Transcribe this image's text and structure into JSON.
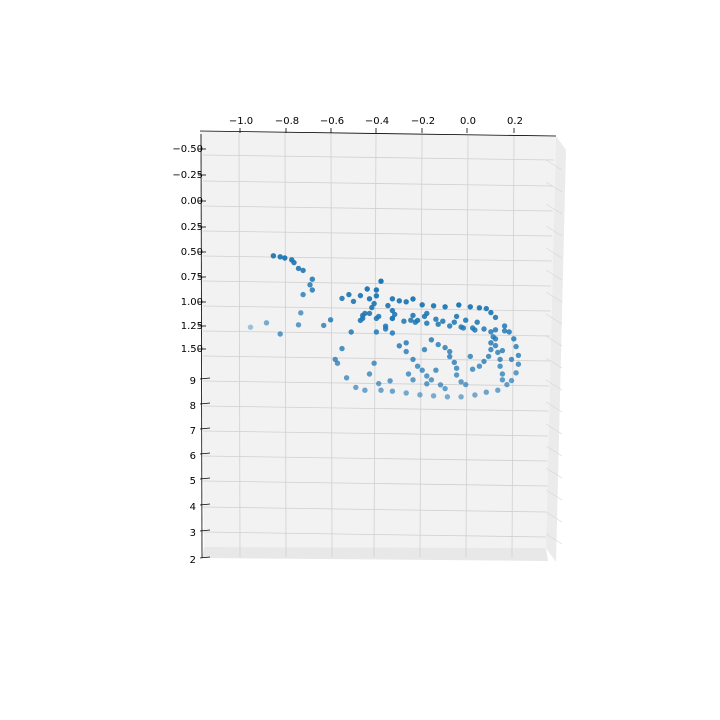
{
  "chart_data": {
    "type": "scatter",
    "title": "",
    "projection": "3d",
    "marker_color": "#1f77b4",
    "grid": true,
    "pane_color": "#f2f2f2",
    "x_axis": {
      "label": "",
      "ticks": [
        "−1.0",
        "−0.8",
        "−0.6",
        "−0.4",
        "−0.2",
        "0.0",
        "0.2"
      ]
    },
    "y_axis": {
      "label": "",
      "ticks": [
        "−0.50",
        "−0.25",
        "0.00",
        "0.25",
        "0.50",
        "0.75",
        "1.00",
        "1.25",
        "1.50"
      ]
    },
    "z_axis": {
      "label": "",
      "ticks": [
        "9",
        "8",
        "7",
        "6",
        "5",
        "4",
        "3",
        "2"
      ]
    },
    "points": [
      [
        -0.85,
        0.54,
        4.6
      ],
      [
        -0.82,
        0.55,
        4.6
      ],
      [
        -0.8,
        0.57,
        4.5
      ],
      [
        -0.77,
        0.58,
        4.6
      ],
      [
        -0.76,
        0.6,
        4.7
      ],
      [
        -0.74,
        0.65,
        4.8
      ],
      [
        -0.72,
        0.67,
        4.8
      ],
      [
        -0.68,
        0.75,
        4.9
      ],
      [
        -0.69,
        0.79,
        5.1
      ],
      [
        -0.68,
        0.85,
        5.0
      ],
      [
        -0.72,
        0.88,
        5.2
      ],
      [
        -0.73,
        1.03,
        5.6
      ],
      [
        -0.95,
        1.07,
        6.9
      ],
      [
        -0.88,
        1.09,
        6.1
      ],
      [
        -0.74,
        1.15,
        5.6
      ],
      [
        -0.82,
        1.25,
        5.5
      ],
      [
        -0.6,
        1.14,
        5.1
      ],
      [
        -0.63,
        1.18,
        5.3
      ],
      [
        -0.55,
        0.95,
        4.8
      ],
      [
        -0.52,
        0.92,
        4.7
      ],
      [
        -0.5,
        0.98,
        4.8
      ],
      [
        -0.47,
        0.93,
        4.7
      ],
      [
        -0.44,
        0.88,
        4.5
      ],
      [
        -0.4,
        0.94,
        4.6
      ],
      [
        -0.33,
        0.97,
        4.6
      ],
      [
        -0.3,
        0.99,
        4.6
      ],
      [
        -0.27,
        1.0,
        4.6
      ],
      [
        -0.24,
        0.98,
        4.5
      ],
      [
        -0.2,
        1.03,
        4.6
      ],
      [
        -0.15,
        1.04,
        4.6
      ],
      [
        -0.1,
        1.05,
        4.6
      ],
      [
        -0.04,
        1.04,
        4.5
      ],
      [
        0.01,
        1.05,
        4.6
      ],
      [
        0.05,
        1.06,
        4.6
      ],
      [
        0.08,
        1.06,
        4.7
      ],
      [
        0.1,
        1.1,
        4.7
      ],
      [
        0.12,
        1.14,
        4.8
      ],
      [
        0.16,
        1.21,
        5.0
      ],
      [
        0.18,
        1.27,
        5.0
      ],
      [
        0.2,
        1.33,
        5.1
      ],
      [
        0.21,
        1.4,
        5.2
      ],
      [
        0.22,
        1.48,
        5.3
      ],
      [
        0.22,
        1.56,
        5.4
      ],
      [
        0.21,
        1.63,
        5.6
      ],
      [
        0.19,
        1.7,
        5.7
      ],
      [
        0.17,
        1.74,
        5.7
      ],
      [
        0.13,
        1.78,
        5.9
      ],
      [
        0.08,
        1.8,
        5.9
      ],
      [
        0.03,
        1.82,
        6.0
      ],
      [
        -0.03,
        1.83,
        6.1
      ],
      [
        -0.09,
        1.83,
        6.1
      ],
      [
        -0.15,
        1.82,
        6.1
      ],
      [
        -0.21,
        1.81,
        6.1
      ],
      [
        -0.27,
        1.8,
        6.0
      ],
      [
        -0.33,
        1.79,
        5.9
      ],
      [
        -0.38,
        1.78,
        5.9
      ],
      [
        -0.45,
        1.78,
        5.9
      ],
      [
        -0.49,
        1.76,
        5.8
      ],
      [
        -0.53,
        1.68,
        5.6
      ],
      [
        -0.57,
        1.55,
        5.4
      ],
      [
        -0.58,
        1.52,
        5.3
      ],
      [
        -0.55,
        1.42,
        5.2
      ],
      [
        -0.51,
        1.27,
        5.0
      ],
      [
        -0.47,
        1.17,
        4.8
      ],
      [
        -0.43,
        1.1,
        4.8
      ],
      [
        -0.39,
        1.13,
        4.8
      ],
      [
        -0.33,
        1.15,
        4.8
      ],
      [
        -0.28,
        1.17,
        4.9
      ],
      [
        -0.23,
        1.18,
        4.9
      ],
      [
        -0.18,
        1.19,
        4.9
      ],
      [
        -0.13,
        1.2,
        4.9
      ],
      [
        -0.08,
        1.21,
        5.0
      ],
      [
        -0.03,
        1.22,
        5.0
      ],
      [
        0.02,
        1.23,
        5.0
      ],
      [
        0.07,
        1.24,
        5.0
      ],
      [
        0.12,
        1.24,
        5.1
      ],
      [
        0.16,
        1.25,
        5.1
      ],
      [
        -0.4,
        1.15,
        4.8
      ],
      [
        -0.36,
        1.22,
        4.9
      ],
      [
        -0.33,
        1.28,
        5.0
      ],
      [
        -0.3,
        1.4,
        5.1
      ],
      [
        -0.27,
        1.45,
        5.2
      ],
      [
        -0.24,
        1.52,
        5.3
      ],
      [
        -0.22,
        1.58,
        5.4
      ],
      [
        -0.2,
        1.62,
        5.4
      ],
      [
        -0.18,
        1.67,
        5.5
      ],
      [
        -0.16,
        1.7,
        5.6
      ],
      [
        -0.18,
        1.74,
        5.6
      ],
      [
        -0.12,
        1.75,
        5.6
      ],
      [
        -0.1,
        1.78,
        5.7
      ],
      [
        -0.08,
        1.45,
        5.2
      ],
      [
        -0.08,
        1.5,
        5.2
      ],
      [
        -0.06,
        1.55,
        5.3
      ],
      [
        -0.05,
        1.6,
        5.4
      ],
      [
        -0.05,
        1.66,
        5.5
      ],
      [
        -0.03,
        1.72,
        5.6
      ],
      [
        -0.01,
        1.74,
        5.7
      ],
      [
        0.02,
        1.61,
        5.4
      ],
      [
        0.05,
        1.58,
        5.4
      ],
      [
        0.07,
        1.54,
        5.3
      ],
      [
        0.09,
        1.49,
        5.3
      ],
      [
        0.1,
        1.43,
        5.2
      ],
      [
        0.1,
        1.37,
        5.1
      ],
      [
        0.11,
        1.31,
        5.1
      ],
      [
        0.1,
        1.26,
        5.1
      ],
      [
        0.12,
        1.33,
        5.1
      ],
      [
        0.12,
        1.39,
        5.2
      ],
      [
        0.13,
        1.45,
        5.3
      ],
      [
        0.14,
        1.52,
        5.3
      ],
      [
        0.14,
        1.58,
        5.4
      ],
      [
        0.15,
        1.65,
        5.5
      ],
      [
        0.15,
        1.7,
        5.6
      ],
      [
        -0.38,
        0.81,
        4.4
      ],
      [
        -0.4,
        0.89,
        4.5
      ],
      [
        -0.43,
        0.97,
        4.6
      ],
      [
        -0.41,
        1.01,
        4.7
      ],
      [
        -0.42,
        1.05,
        4.7
      ],
      [
        -0.45,
        1.1,
        4.8
      ],
      [
        -0.46,
        1.12,
        4.8
      ],
      [
        -0.46,
        1.15,
        4.8
      ],
      [
        -0.35,
        1.03,
        4.7
      ],
      [
        -0.33,
        1.08,
        4.7
      ],
      [
        -0.32,
        1.11,
        4.8
      ],
      [
        -0.33,
        1.15,
        4.8
      ],
      [
        -0.24,
        1.12,
        4.8
      ],
      [
        -0.25,
        1.16,
        4.9
      ],
      [
        -0.18,
        1.1,
        4.8
      ],
      [
        -0.19,
        1.13,
        4.8
      ],
      [
        -0.22,
        1.17,
        4.8
      ],
      [
        -0.14,
        1.15,
        4.9
      ],
      [
        -0.11,
        1.17,
        4.9
      ],
      [
        -0.06,
        1.18,
        4.9
      ],
      [
        -0.05,
        1.13,
        4.8
      ],
      [
        -0.01,
        1.16,
        4.9
      ],
      [
        0.04,
        1.18,
        4.9
      ],
      [
        -0.02,
        1.23,
        5.0
      ],
      [
        0.03,
        1.25,
        5.0
      ],
      [
        -0.36,
        1.24,
        5.0
      ],
      [
        -0.4,
        1.27,
        5.0
      ],
      [
        -0.27,
        1.37,
        5.1
      ],
      [
        -0.16,
        1.34,
        5.1
      ],
      [
        -0.19,
        1.43,
        5.2
      ],
      [
        -0.13,
        1.38,
        5.2
      ],
      [
        -0.1,
        1.41,
        5.2
      ],
      [
        -0.41,
        1.55,
        5.4
      ],
      [
        -0.43,
        1.65,
        5.5
      ],
      [
        -0.34,
        1.71,
        5.6
      ],
      [
        -0.39,
        1.73,
        5.7
      ],
      [
        -0.26,
        1.65,
        5.5
      ],
      [
        -0.24,
        1.7,
        5.6
      ],
      [
        -0.14,
        1.62,
        5.4
      ],
      [
        0.01,
        1.49,
        5.3
      ],
      [
        0.15,
        1.44,
        5.2
      ],
      [
        0.19,
        1.52,
        5.3
      ]
    ]
  }
}
